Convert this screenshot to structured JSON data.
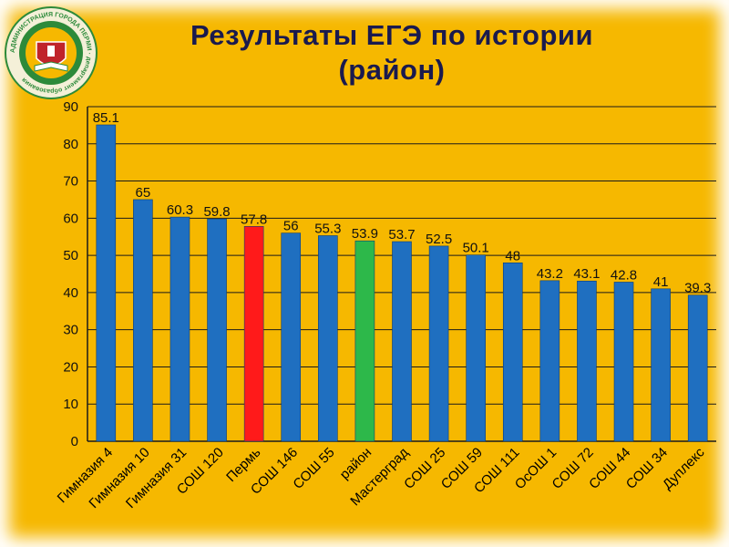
{
  "colors": {
    "background": "#f6b800",
    "bar_default": "#1f6fc0",
    "bar_city": "#ff1a1a",
    "bar_district": "#2db84a",
    "title": "#1a1a4e"
  },
  "logo": {
    "icon": "administration-emblem-icon",
    "arc_text": "АДМИНИСТРАЦИЯ ГОРОДА ПЕРМИ · департамент образования"
  },
  "header": {
    "title_line1": "Результаты ЕГЭ по истории",
    "title_line2": "(район)"
  },
  "chart_data": {
    "type": "bar",
    "title": "Результаты ЕГЭ по истории (район)",
    "xlabel": "",
    "ylabel": "",
    "ylim": [
      0,
      90
    ],
    "yticks": [
      0,
      10,
      20,
      30,
      40,
      50,
      60,
      70,
      80,
      90
    ],
    "grid": true,
    "legend": "none",
    "categories": [
      "Гимназия 4",
      "Гимназия 10",
      "Гимназия 31",
      "СОШ 120",
      "Пермь",
      "СОШ 146",
      "СОШ 55",
      "район",
      "Мастерград",
      "СОШ 25",
      "СОШ 59",
      "СОШ 111",
      "ОсОШ 1",
      "СОШ 72",
      "СОШ 44",
      "СОШ 34",
      "Дуплекс"
    ],
    "values": [
      85.1,
      65,
      60.3,
      59.8,
      57.8,
      56,
      55.3,
      53.9,
      53.7,
      52.5,
      50.1,
      48,
      43.2,
      43.1,
      42.8,
      41,
      39.3
    ],
    "highlight": {
      "Пермь": "#ff1a1a",
      "район": "#2db84a"
    }
  }
}
